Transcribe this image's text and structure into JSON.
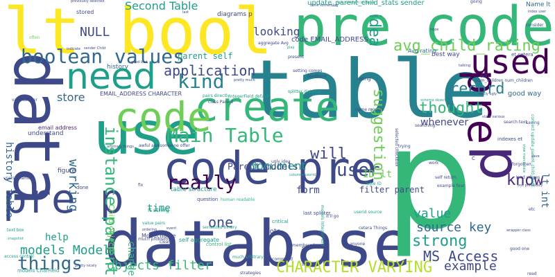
{
  "palette": {
    "yellow": "#fde725",
    "lime": "#b5de2b",
    "green": "#6ece58",
    "teal_green": "#35b779",
    "teal": "#1f9e89",
    "cyan_blue": "#26828e",
    "blue": "#31688e",
    "indigo": "#3e4989",
    "purple": "#482878",
    "dark_purple": "#440154"
  },
  "words": [
    {
      "text": "database",
      "c": "indigo"
    },
    {
      "text": "table",
      "c": "cyan_blue"
    },
    {
      "text": "p",
      "c": "teal_green"
    },
    {
      "text": "pre code",
      "c": "teal_green"
    },
    {
      "text": "lt bool",
      "c": "yellow"
    },
    {
      "text": "data",
      "c": "indigo"
    },
    {
      "text": "use",
      "c": "teal"
    },
    {
      "text": "code pre",
      "c": "indigo"
    },
    {
      "text": "create",
      "c": "teal_green"
    },
    {
      "text": "code",
      "c": "green"
    },
    {
      "text": "pre p",
      "c": "indigo"
    },
    {
      "text": "p",
      "c": "purple"
    },
    {
      "text": "pre",
      "c": "dark_purple"
    },
    {
      "text": "used",
      "c": "dark_purple"
    },
    {
      "text": "need",
      "c": "teal"
    },
    {
      "text": "boolean values",
      "c": "blue"
    },
    {
      "text": "Main Table",
      "c": "teal_green"
    },
    {
      "text": "CHARACTER VARYING",
      "c": "lime"
    },
    {
      "text": "really",
      "c": "dark_purple"
    },
    {
      "text": "instance parent",
      "c": "teal_green"
    },
    {
      "text": "things",
      "c": "blue"
    },
    {
      "text": "avg_child_rating",
      "c": "green"
    },
    {
      "text": "kind",
      "c": "cyan_blue"
    },
    {
      "text": "application",
      "c": "indigo"
    },
    {
      "text": "thought",
      "c": "teal_green"
    },
    {
      "text": "user",
      "c": "indigo"
    },
    {
      "text": "will",
      "c": "indigo"
    },
    {
      "text": "suggestion",
      "c": "green"
    },
    {
      "text": "strong",
      "c": "teal"
    },
    {
      "text": "MS Access",
      "c": "indigo"
    },
    {
      "text": "record",
      "c": "cyan_blue"
    },
    {
      "text": "know",
      "c": "purple"
    },
    {
      "text": "NULL",
      "c": "indigo"
    },
    {
      "text": "Second Table",
      "c": "teal"
    },
    {
      "text": "idea",
      "c": "teal"
    },
    {
      "text": "one",
      "c": "indigo"
    },
    {
      "text": "working",
      "c": "blue"
    },
    {
      "text": "models Model",
      "c": "teal"
    },
    {
      "text": "objects filter",
      "c": "teal_green"
    },
    {
      "text": "source key",
      "c": "blue"
    },
    {
      "text": "value",
      "c": "teal"
    },
    {
      "text": "example",
      "c": "indigo"
    },
    {
      "text": "document",
      "c": "teal"
    },
    {
      "text": "store",
      "c": "blue"
    },
    {
      "text": "looking",
      "c": "indigo"
    },
    {
      "text": "history table",
      "c": "blue"
    },
    {
      "text": "Parent models",
      "c": "indigo"
    },
    {
      "text": "time",
      "c": "teal"
    },
    {
      "text": "ID lt",
      "c": "green"
    },
    {
      "text": "whenever",
      "c": "indigo"
    },
    {
      "text": "help",
      "c": "teal"
    },
    {
      "text": "change",
      "c": "teal_green"
    },
    {
      "text": "lt int",
      "c": "blue"
    },
    {
      "text": "form",
      "c": "indigo"
    },
    {
      "text": "filter parent",
      "c": "indigo"
    },
    {
      "text": "parent self",
      "c": "teal"
    },
    {
      "text": "update_parent_child_stats sender",
      "c": "teal"
    },
    {
      "text": "good way",
      "c": "blue"
    },
    {
      "text": "Child objects",
      "c": "green"
    },
    {
      "text": "Name lt",
      "c": "blue"
    },
    {
      "text": "best way",
      "c": "indigo"
    },
    {
      "text": "history",
      "c": "blue"
    },
    {
      "text": "code EMAIL_ADDRESS",
      "c": "indigo"
    },
    {
      "text": "EMAIL_ADDRESS CHARACTER",
      "c": "indigo"
    },
    {
      "text": "Avg rating",
      "c": "blue"
    },
    {
      "text": "diagrams p",
      "c": "indigo"
    },
    {
      "text": "stored",
      "c": "indigo"
    },
    {
      "text": "ugly idea",
      "c": "indigo"
    },
    {
      "text": "table structure",
      "c": "teal"
    },
    {
      "text": "email address",
      "c": "purple"
    },
    {
      "text": "understand",
      "c": "indigo"
    },
    {
      "text": "figure",
      "c": "indigo"
    },
    {
      "text": "setting comes",
      "c": "indigo"
    },
    {
      "text": "pairs directly",
      "c": "teal"
    },
    {
      "text": "value pairs",
      "c": "teal"
    },
    {
      "text": "self aggregate",
      "c": "teal"
    },
    {
      "text": "Model name",
      "c": "indigo"
    },
    {
      "text": "lt string",
      "c": "teal"
    },
    {
      "text": "serialized binary",
      "c": "teal"
    },
    {
      "text": "question",
      "c": "indigo"
    },
    {
      "text": "human readable",
      "c": "teal_green"
    },
    {
      "text": "critical",
      "c": "teal"
    },
    {
      "text": "last splitter",
      "c": "indigo"
    },
    {
      "text": "lots",
      "c": "indigo"
    },
    {
      "text": "control list",
      "c": "teal_green"
    },
    {
      "text": "remembered",
      "c": "indigo"
    },
    {
      "text": "much arbitrary",
      "c": "teal"
    },
    {
      "text": "strategies",
      "c": "indigo"
    },
    {
      "text": "models CharField",
      "c": "teal"
    },
    {
      "text": "access control",
      "c": "teal"
    },
    {
      "text": "text box",
      "c": "teal"
    },
    {
      "text": "users uname",
      "c": "indigo"
    },
    {
      "text": "snapshot",
      "c": "teal"
    },
    {
      "text": "various user",
      "c": "indigo"
    },
    {
      "text": "aggregate Avg",
      "c": "indigo"
    },
    {
      "text": "sender Child",
      "c": "indigo"
    },
    {
      "text": "indicate",
      "c": "indigo"
    },
    {
      "text": "present",
      "c": "indigo"
    },
    {
      "text": "done something",
      "c": "indigo"
    },
    {
      "text": "num_children instance",
      "c": "teal"
    },
    {
      "text": "previously selected",
      "c": "indigo"
    },
    {
      "text": "going",
      "c": "indigo"
    },
    {
      "text": "index user",
      "c": "indigo"
    },
    {
      "text": "consider",
      "c": "indigo"
    },
    {
      "text": "hope",
      "c": "indigo"
    },
    {
      "text": "et cetera",
      "c": "indigo"
    },
    {
      "text": "def",
      "c": "indigo"
    },
    {
      "text": "talking",
      "c": "indigo"
    },
    {
      "text": "num_children num_children",
      "c": "indigo"
    },
    {
      "text": "really ugly",
      "c": "indigo"
    },
    {
      "text": "schema objects",
      "c": "teal"
    },
    {
      "text": "indexes et",
      "c": "indigo"
    },
    {
      "text": "search text",
      "c": "indigo"
    },
    {
      "text": "saving",
      "c": "indigo"
    },
    {
      "text": "store various",
      "c": "indigo"
    },
    {
      "text": "searching",
      "c": "indigo"
    },
    {
      "text": "selected checkbox",
      "c": "indigo"
    },
    {
      "text": "trying",
      "c": "indigo"
    },
    {
      "text": "C",
      "c": "indigo"
    },
    {
      "text": "self return",
      "c": "indigo"
    },
    {
      "text": "example four",
      "c": "indigo"
    },
    {
      "text": "box previously",
      "c": "indigo"
    },
    {
      "text": "connect update_parent_child_stats",
      "c": "teal"
    },
    {
      "text": "Table ID",
      "c": "teal"
    },
    {
      "text": "userid source",
      "c": "teal"
    },
    {
      "text": "cetera Things",
      "c": "indigo"
    },
    {
      "text": "it'll go",
      "c": "indigo"
    },
    {
      "text": "columns userid",
      "c": "teal"
    },
    {
      "text": "name models",
      "c": "indigo"
    },
    {
      "text": "splitter distance",
      "c": "teal"
    },
    {
      "text": "rating",
      "c": "indigo"
    },
    {
      "text": "class Parent",
      "c": "indigo"
    },
    {
      "text": "IntegerField default",
      "c": "teal"
    },
    {
      "text": "pretty much",
      "c": "indigo"
    },
    {
      "text": "good bad",
      "c": "indigo"
    },
    {
      "text": "feedback",
      "c": "indigo"
    },
    {
      "text": "arbitrary things",
      "c": "indigo"
    },
    {
      "text": "awful awesomeone offer",
      "c": "indigo"
    },
    {
      "text": "cleared",
      "c": "indigo"
    },
    {
      "text": "much problems",
      "c": "indigo"
    },
    {
      "text": "ordering",
      "c": "indigo"
    },
    {
      "text": "done",
      "c": "indigo"
    },
    {
      "text": "event",
      "c": "indigo"
    },
    {
      "text": "fix",
      "c": "indigo"
    },
    {
      "text": "ValueID lt",
      "c": "indigo"
    },
    {
      "text": "models IntegerField",
      "c": "teal"
    },
    {
      "text": "recommend",
      "c": "indigo"
    },
    {
      "text": "anyone",
      "c": "indigo"
    },
    {
      "text": "good one",
      "c": "indigo"
    },
    {
      "text": "read",
      "c": "indigo"
    },
    {
      "text": "wrapper class",
      "c": "indigo"
    },
    {
      "text": "etc",
      "c": "indigo"
    },
    {
      "text": "forgotten",
      "c": "indigo"
    },
    {
      "text": "work",
      "c": "indigo"
    },
    {
      "text": "load values",
      "c": "indigo"
    },
    {
      "text": "pretty nicely",
      "c": "indigo"
    },
    {
      "text": "last",
      "c": "indigo"
    },
    {
      "text": "often",
      "c": "green"
    },
    {
      "text": "play",
      "c": "teal"
    },
    {
      "text": "view manipulate",
      "c": "teal"
    },
    {
      "text": "save",
      "c": "indigo"
    }
  ]
}
